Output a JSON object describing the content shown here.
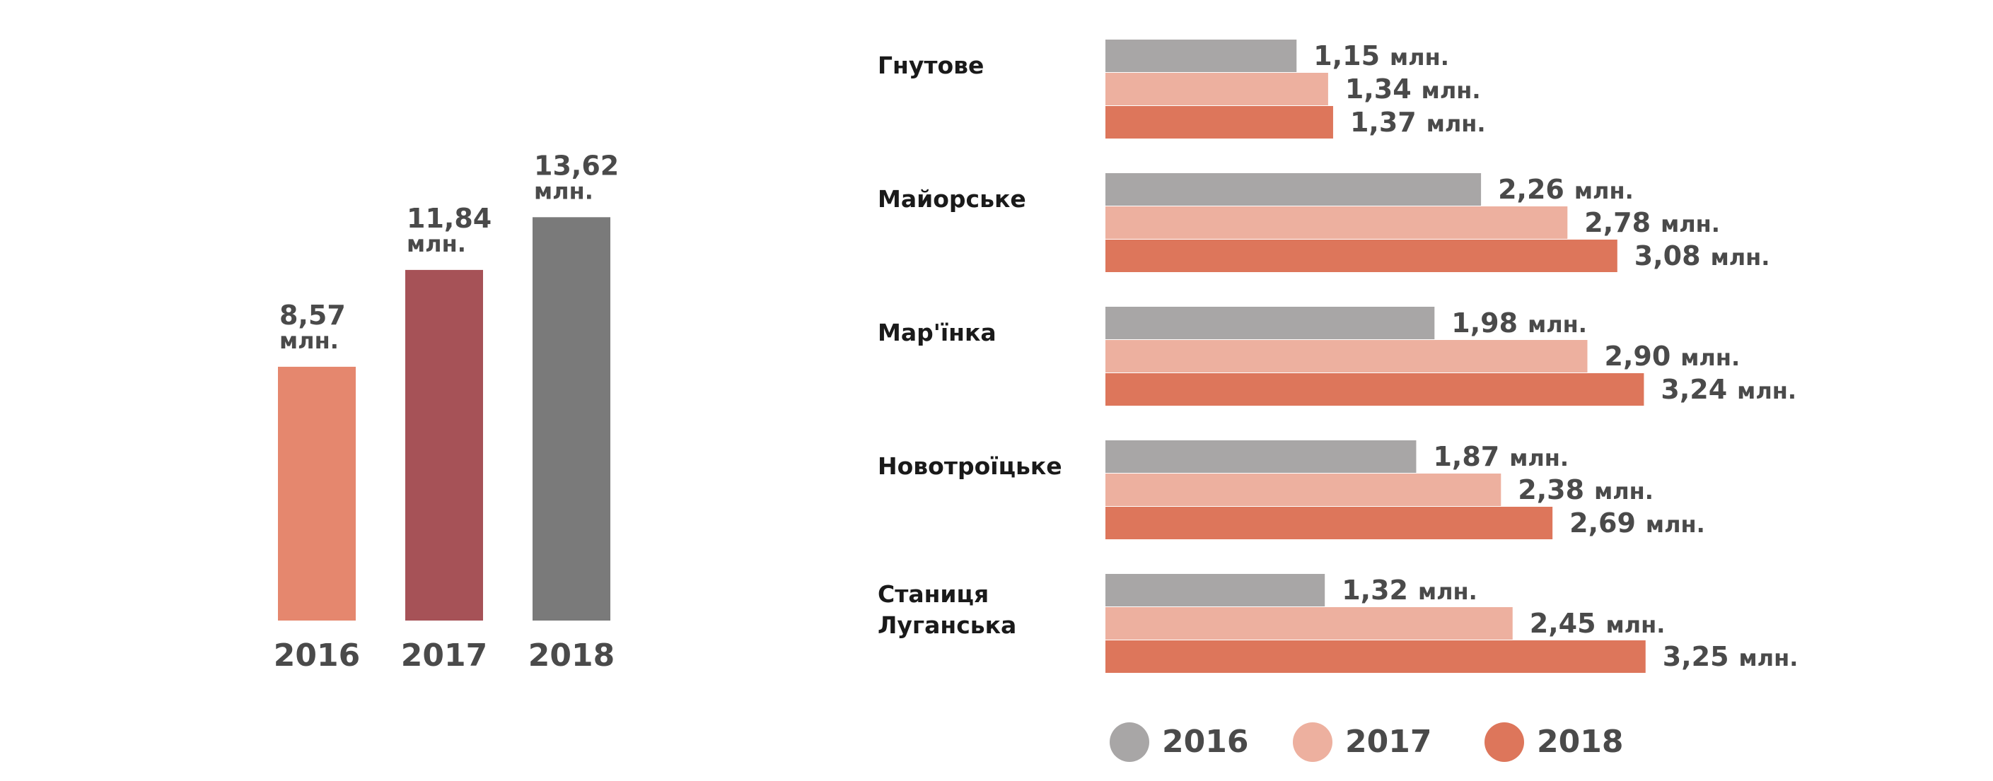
{
  "chart_data": [
    {
      "type": "bar",
      "categories": [
        "2016",
        "2017",
        "2018"
      ],
      "values": [
        8.57,
        11.84,
        13.62
      ],
      "value_labels": [
        "8,57",
        "11,84",
        "13,62"
      ],
      "unit": "млн.",
      "colors": [
        "#E5876E",
        "#A65257",
        "#7A7A7A"
      ]
    },
    {
      "type": "bar",
      "orientation": "horizontal",
      "categories": [
        "Гнутове",
        "Майорське",
        "Мар'їнка",
        "Новотроїцьке",
        "Станиця Луганська"
      ],
      "category_lines": [
        [
          "Гнутове"
        ],
        [
          "Майорське"
        ],
        [
          "Мар'їнка"
        ],
        [
          "Новотроїцьке"
        ],
        [
          "Станиця",
          "Луганська"
        ]
      ],
      "unit": "млн.",
      "series": [
        {
          "name": "2016",
          "color": "#A8A6A6",
          "values": [
            1.15,
            2.26,
            1.98,
            1.87,
            1.32
          ],
          "labels": [
            "1,15",
            "2,26",
            "1,98",
            "1,87",
            "1,32"
          ]
        },
        {
          "name": "2017",
          "color": "#EDB09F",
          "values": [
            1.34,
            2.78,
            2.9,
            2.38,
            2.45
          ],
          "labels": [
            "1,34",
            "2,78",
            "2,90",
            "2,38",
            "2,45"
          ]
        },
        {
          "name": "2018",
          "color": "#DD765B",
          "values": [
            1.37,
            3.08,
            3.24,
            2.69,
            3.25
          ],
          "labels": [
            "1,37",
            "3,08",
            "3,24",
            "2,69",
            "3,25"
          ]
        }
      ],
      "legend": "bottom"
    }
  ]
}
